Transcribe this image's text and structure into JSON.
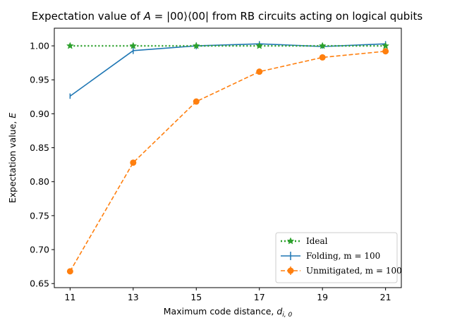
{
  "chart_data": {
    "type": "line",
    "title_prefix": "Expectation value of ",
    "title_math": "A",
    "title_equation": " = |00⟩⟨00|",
    "title_suffix": " from RB circuits acting on logical qubits",
    "xlabel_text": "Maximum code distance, ",
    "xlabel_sym": "d",
    "xlabel_sub": "i, 0",
    "ylabel_text": "Expectation value, ",
    "ylabel_sym": "E",
    "x": [
      11,
      13,
      15,
      17,
      19,
      21
    ],
    "x_tick_labels": [
      "11",
      "13",
      "15",
      "17",
      "19",
      "21"
    ],
    "y_ticks": [
      0.65,
      0.7,
      0.75,
      0.8,
      0.85,
      0.9,
      0.95,
      1.0
    ],
    "y_tick_labels": [
      "0.65",
      "0.70",
      "0.75",
      "0.80",
      "0.85",
      "0.90",
      "0.95",
      "1.00"
    ],
    "xlim": [
      10.5,
      21.5
    ],
    "ylim": [
      0.644,
      1.026
    ],
    "grid": false,
    "legend_position": "lower-right",
    "series": [
      {
        "name": "Ideal",
        "color": "#2ca02c",
        "line_style": "dotted",
        "marker": "star",
        "values": [
          1.0,
          1.0,
          1.0,
          1.0,
          1.0,
          1.0
        ]
      },
      {
        "name": "Folding, m = 100",
        "color": "#1f77b4",
        "line_style": "solid",
        "marker": "none",
        "values": [
          0.926,
          0.993,
          1.0,
          1.003,
          0.999,
          1.003
        ],
        "errors": [
          0.004,
          0.005,
          0.005,
          0.004,
          0.003,
          0.004
        ]
      },
      {
        "name": "Unmitigated, m = 100",
        "color": "#ff7f0e",
        "line_style": "dashed",
        "marker": "circle",
        "values": [
          0.668,
          0.828,
          0.918,
          0.962,
          0.983,
          0.992
        ],
        "errors": [
          0.004,
          0.002,
          0.002,
          0.002,
          0.001,
          0.002
        ]
      }
    ]
  }
}
